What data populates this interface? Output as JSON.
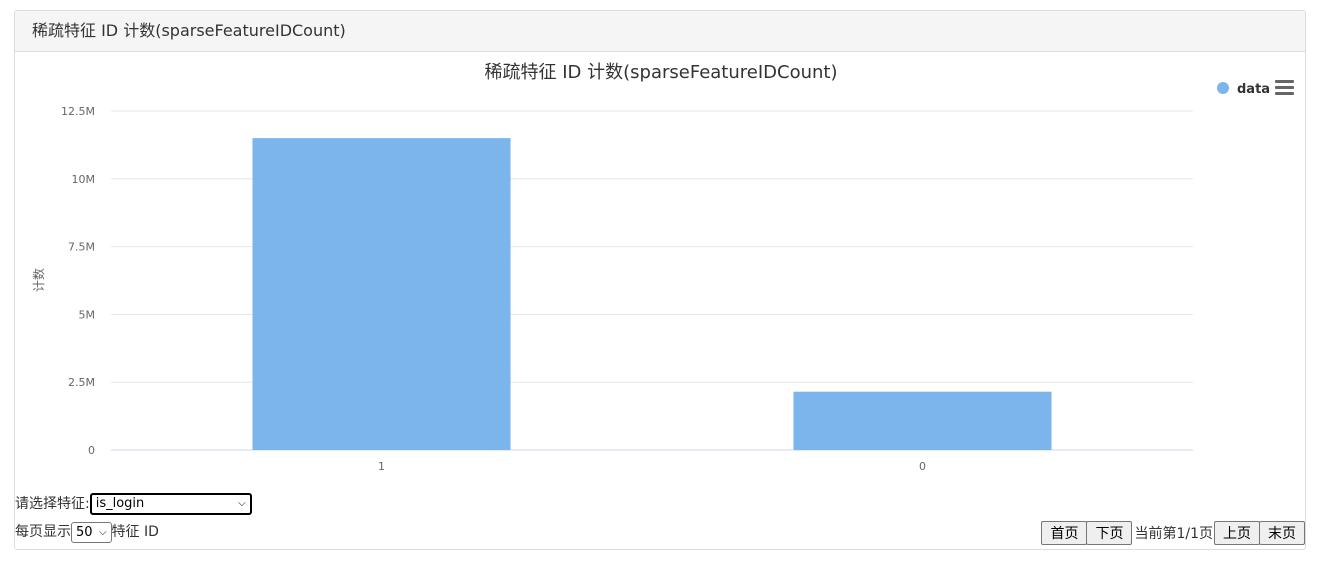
{
  "panel": {
    "heading": "稀疏特征 ID 计数(sparseFeatureIDCount)"
  },
  "chart_data": {
    "type": "bar",
    "title": "稀疏特征 ID 计数(sparseFeatureIDCount)",
    "xlabel": "",
    "ylabel": "计数",
    "categories": [
      "1",
      "0"
    ],
    "series": [
      {
        "name": "data",
        "values": [
          11500000,
          2150000
        ]
      }
    ],
    "ylim": [
      0,
      12500000
    ],
    "yticks": [
      0,
      2500000,
      5000000,
      7500000,
      10000000,
      12500000
    ],
    "ytick_labels": [
      "0",
      "2.5M",
      "5M",
      "7.5M",
      "10M",
      "12.5M"
    ],
    "grid": true,
    "legend": "top-right",
    "color": "#7cb5ec"
  },
  "controls": {
    "feature_label": "请选择特征:",
    "feature_value": "is_login",
    "per_page_label": "每页显示",
    "per_page_value": "50",
    "per_page_suffix": "特征 ID"
  },
  "pager": {
    "first": "首页",
    "next": "下页",
    "info": "当前第1/1页",
    "prev": "上页",
    "last": "末页"
  },
  "icons": {
    "menu": "hamburger-menu-icon",
    "dropdown": "chevron-down-icon",
    "legend_marker": "circle-icon"
  }
}
